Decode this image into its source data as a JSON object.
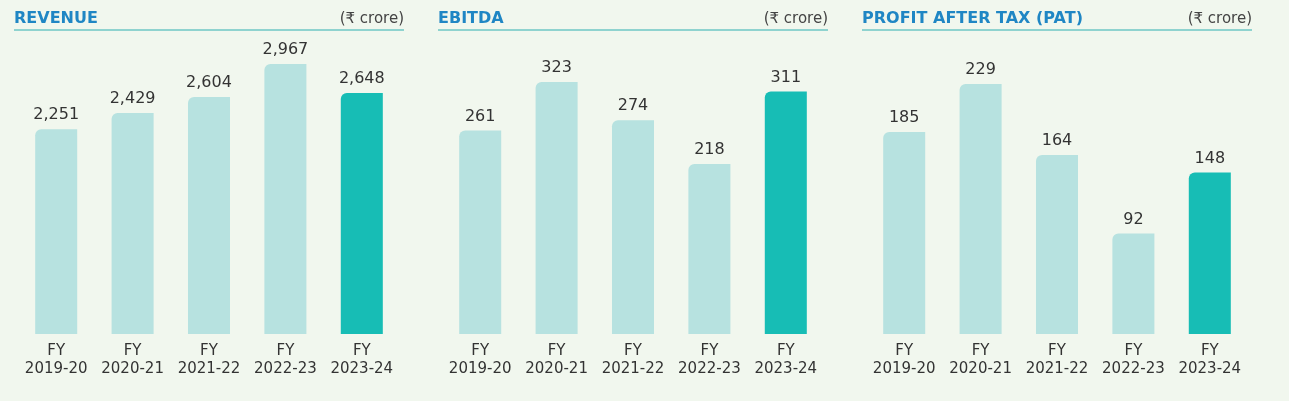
{
  "chart_data": [
    {
      "type": "bar",
      "title": "REVENUE",
      "subtitle": "(₹ crore)",
      "categories": [
        "FY 2019-20",
        "FY 2020-21",
        "FY 2021-22",
        "FY 2022-23",
        "FY 2023-24"
      ],
      "values": [
        2251,
        2429,
        2604,
        2967,
        2648
      ],
      "value_labels": [
        "2,251",
        "2,429",
        "2,604",
        "2,967",
        "2,648"
      ],
      "colors": [
        "#b7e2e0",
        "#b7e2e0",
        "#b7e2e0",
        "#b7e2e0",
        "#17bdb5"
      ],
      "legend": false,
      "grid": false
    },
    {
      "type": "bar",
      "title": "EBITDA",
      "subtitle": "(₹ crore)",
      "categories": [
        "FY 2019-20",
        "FY 2020-21",
        "FY 2021-22",
        "FY 2022-23",
        "FY 2023-24"
      ],
      "values": [
        261,
        323,
        274,
        218,
        311
      ],
      "colors": [
        "#b7e2e0",
        "#b7e2e0",
        "#b7e2e0",
        "#b7e2e0",
        "#17bdb5"
      ],
      "data_labels": true,
      "legend": false,
      "grid": false
    },
    {
      "type": "bar",
      "title": "PROFIT AFTER TAX (PAT)",
      "subtitle": "(₹ crore)",
      "categories": [
        "FY 2019-20",
        "FY 2020-21",
        "FY 2021-22",
        "FY 2022-23",
        "FY 2023-24"
      ],
      "values": [
        185,
        229,
        164,
        92,
        148
      ],
      "colors": [
        "#b7e2e0",
        "#b7e2e0",
        "#b7e2e0",
        "#b7e2e0",
        "#17bdb5"
      ],
      "data_labels": true,
      "legend": false,
      "grid": false
    }
  ]
}
